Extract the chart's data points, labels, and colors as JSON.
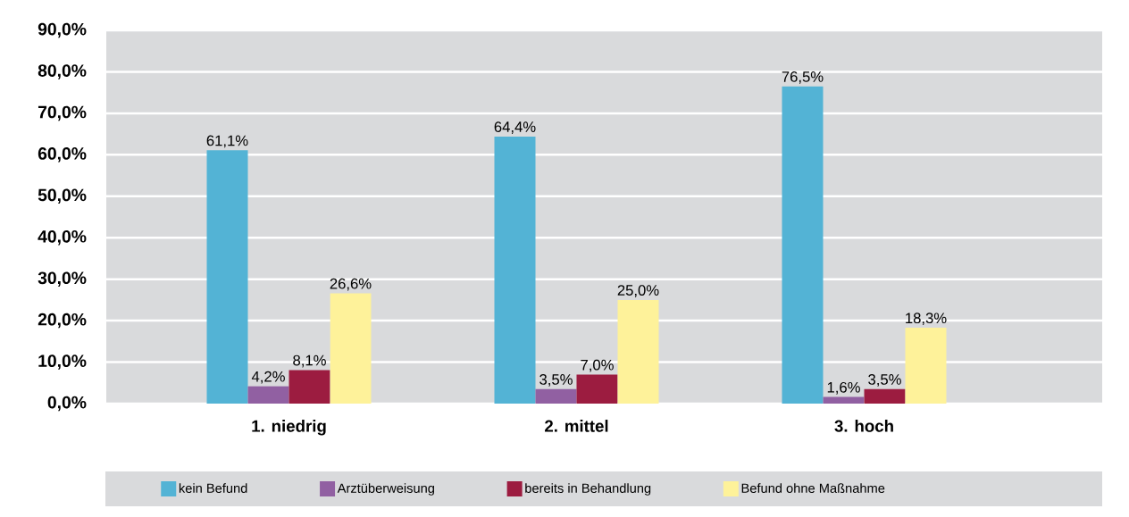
{
  "chart_data": {
    "type": "bar",
    "categories": [
      "1. niedrig",
      "2. mittel",
      "3. hoch"
    ],
    "series": [
      {
        "name": "kein Befund",
        "color": "#53b3d5",
        "values": [
          61.1,
          64.4,
          76.5
        ],
        "value_labels": [
          "61,1%",
          "64,4%",
          "76,5%"
        ]
      },
      {
        "name": "Arztüberweisung",
        "color": "#9160a2",
        "values": [
          4.2,
          3.5,
          1.6
        ],
        "value_labels": [
          "4,2%",
          "3,5%",
          "1,6%"
        ]
      },
      {
        "name": "bereits in Behandlung",
        "color": "#9c1c40",
        "values": [
          8.1,
          7.0,
          3.5
        ],
        "value_labels": [
          "8,1%",
          "7,0%",
          "3,5%"
        ]
      },
      {
        "name": "Befund ohne Maßnahme",
        "color": "#fef29a",
        "values": [
          26.6,
          25.0,
          18.3
        ],
        "value_labels": [
          "26,6%",
          "25,0%",
          "18,3%"
        ]
      }
    ],
    "ylim": [
      0,
      90
    ],
    "yticks": [
      {
        "value": 0,
        "label": "0,0%"
      },
      {
        "value": 10,
        "label": "10,0%"
      },
      {
        "value": 20,
        "label": "20,0%"
      },
      {
        "value": 30,
        "label": "30,0%"
      },
      {
        "value": 40,
        "label": "40,0%"
      },
      {
        "value": 50,
        "label": "50,0%"
      },
      {
        "value": 60,
        "label": "60,0%"
      },
      {
        "value": 70,
        "label": "70,0%"
      },
      {
        "value": 80,
        "label": "80,0%"
      },
      {
        "value": 90,
        "label": "90,0%"
      }
    ],
    "grid": "y",
    "legend": "bottom"
  }
}
